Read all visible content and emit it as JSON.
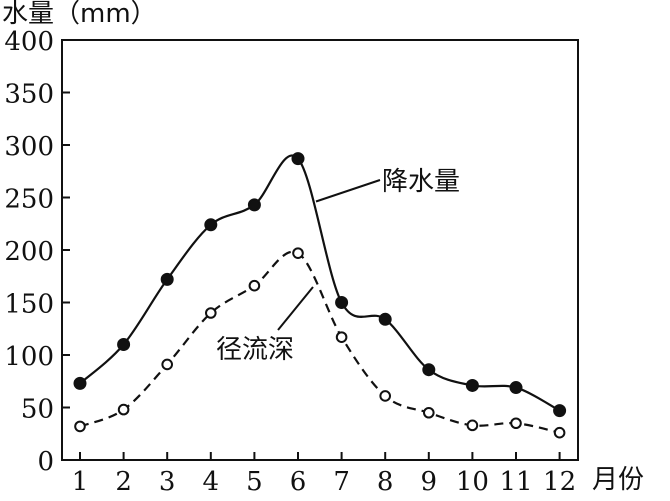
{
  "chart_data": {
    "type": "line",
    "ylabel": "水量（mm）",
    "xlabel": "月份",
    "categories": [
      "1",
      "2",
      "3",
      "4",
      "5",
      "6",
      "7",
      "8",
      "9",
      "10",
      "11",
      "12"
    ],
    "ylim": [
      0,
      400
    ],
    "yticks": [
      0,
      50,
      100,
      150,
      200,
      250,
      300,
      350,
      400
    ],
    "grid": false,
    "series": [
      {
        "name": "降水量",
        "marker": "filled-circle",
        "line_style": "solid",
        "values": [
          73,
          110,
          172,
          224,
          243,
          287,
          150,
          134,
          86,
          71,
          69,
          47
        ]
      },
      {
        "name": "径流深",
        "marker": "open-circle",
        "line_style": "dashed",
        "values": [
          32,
          48,
          91,
          140,
          166,
          197,
          117,
          61,
          45,
          33,
          35,
          26
        ]
      }
    ]
  }
}
